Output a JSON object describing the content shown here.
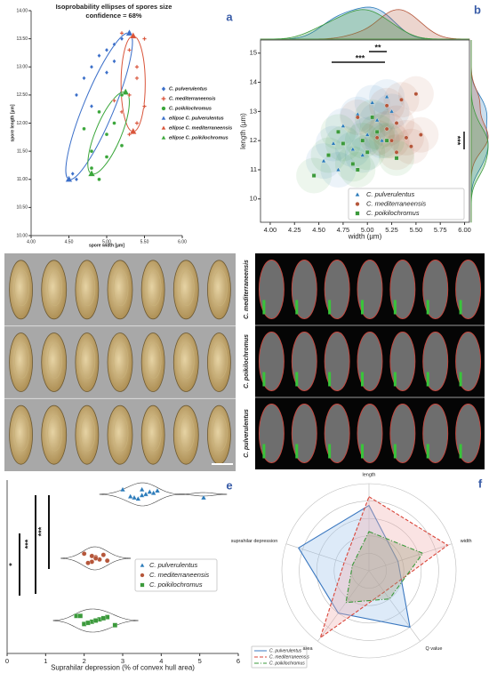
{
  "image_panels": {
    "c": {
      "label": "c"
    },
    "d": {
      "label": "d",
      "rows": [
        "C. mediterraneensis",
        "C. poikilochromus",
        "C. pulverulentus"
      ]
    }
  },
  "chart_data": [
    {
      "type": "scatter",
      "panel_label": "a",
      "title": "Isoprobability ellipses of spores size",
      "subtitle": "confidence = 68%",
      "xlabel": "spore width [µm]",
      "ylabel": "spore length [µm]",
      "xlim": [
        4,
        6
      ],
      "ylim": [
        10,
        14
      ],
      "xticks": [
        {
          "value": 4,
          "label": "4.00"
        },
        {
          "value": 4.5,
          "label": "4.50"
        },
        {
          "value": 5,
          "label": "5.00"
        },
        {
          "value": 5.5,
          "label": "5.50"
        },
        {
          "value": 6,
          "label": "6.00"
        }
      ],
      "yticks": [
        {
          "value": 10,
          "label": "10.00"
        },
        {
          "value": 10.5,
          "label": "10.50"
        },
        {
          "value": 11,
          "label": "11.00"
        },
        {
          "value": 11.5,
          "label": "11.50"
        },
        {
          "value": 12,
          "label": "12.00"
        },
        {
          "value": 12.5,
          "label": "12.50"
        },
        {
          "value": 13,
          "label": "13.00"
        },
        {
          "value": 13.5,
          "label": "13.50"
        },
        {
          "value": 14,
          "label": "14.00"
        }
      ],
      "series": [
        {
          "name": "C. pulverulentus",
          "color": "#3b6fc9",
          "marker": "diamond",
          "x": [
            4.6,
            4.7,
            4.8,
            4.9,
            5.0,
            5.1,
            5.2,
            4.8,
            5.0,
            4.6,
            4.55,
            5.1
          ],
          "y": [
            12.5,
            12.8,
            13.0,
            13.2,
            13.3,
            13.4,
            13.5,
            12.3,
            12.9,
            11.0,
            11.1,
            13.1
          ]
        },
        {
          "name": "C. mediterraneensis",
          "color": "#d9543a",
          "marker": "plus",
          "x": [
            5.2,
            5.3,
            5.4,
            5.3,
            5.2,
            5.4,
            5.5,
            5.1,
            5.3,
            5.4,
            5.5
          ],
          "y": [
            13.6,
            13.3,
            13.0,
            12.5,
            12.2,
            12.0,
            12.3,
            12.4,
            11.8,
            12.8,
            13.5
          ]
        },
        {
          "name": "C. poikilochromus",
          "color": "#3aa63a",
          "marker": "circle",
          "x": [
            4.7,
            4.8,
            4.9,
            5.0,
            5.1,
            5.0,
            5.2,
            4.8,
            5.2,
            4.9
          ],
          "y": [
            11.9,
            11.5,
            12.2,
            11.8,
            12.0,
            11.4,
            12.5,
            11.2,
            11.6,
            11.0
          ]
        }
      ],
      "ellipses": [
        {
          "name": "ellipse C. pulverulentus",
          "color": "#3b6fc9",
          "marker": "triangle",
          "x": [
            4.5,
            5.3
          ],
          "y": [
            11.0,
            13.6
          ],
          "half_width": 0.2
        },
        {
          "name": "ellipse C. mediterraneensis",
          "color": "#d9543a",
          "marker": "triangle",
          "x": [
            5.35,
            5.35
          ],
          "y": [
            11.85,
            13.55
          ],
          "half_width": 0.16
        },
        {
          "name": "ellipse C. poikilochromus",
          "color": "#3aa63a",
          "marker": "triangle",
          "x": [
            4.8,
            5.25
          ],
          "y": [
            11.1,
            12.55
          ],
          "half_width": 0.17
        }
      ]
    },
    {
      "type": "scatter",
      "panel_label": "b",
      "density": true,
      "marginals": true,
      "xlabel": "width (µm)",
      "ylabel": "length (µm)",
      "xlim": [
        3.9,
        6.05
      ],
      "ylim": [
        9.2,
        15.45
      ],
      "xticks": [
        {
          "value": 4,
          "label": "4.00"
        },
        {
          "value": 4.25,
          "label": "4.25"
        },
        {
          "value": 4.5,
          "label": "4.50"
        },
        {
          "value": 4.75,
          "label": "4.75"
        },
        {
          "value": 5,
          "label": "5.00"
        },
        {
          "value": 5.25,
          "label": "5.25"
        },
        {
          "value": 5.5,
          "label": "5.50"
        },
        {
          "value": 5.75,
          "label": "5.75"
        },
        {
          "value": 6,
          "label": "6.00"
        }
      ],
      "yticks": [
        10,
        11,
        12,
        13,
        14,
        15
      ],
      "annotations": [
        "**",
        "***",
        "***"
      ],
      "series": [
        {
          "name": "C. pulverulentus",
          "color": "#2b7bba",
          "marker": "triangle",
          "x": [
            4.55,
            4.65,
            4.75,
            4.85,
            4.9,
            5.0,
            5.05,
            5.1,
            5.2,
            5.25,
            4.95,
            4.7,
            5.15
          ],
          "y": [
            11.3,
            11.9,
            12.5,
            11.7,
            12.9,
            12.2,
            13.3,
            12.7,
            13.5,
            13.0,
            11.5,
            11.0,
            12.0
          ]
        },
        {
          "name": "C. mediterraneensis",
          "color": "#b5563a",
          "marker": "circle",
          "x": [
            4.9,
            5.1,
            5.2,
            5.25,
            5.3,
            5.35,
            5.4,
            5.45,
            5.5,
            5.55,
            5.3,
            5.2
          ],
          "y": [
            12.8,
            12.1,
            13.2,
            12.0,
            12.6,
            13.4,
            12.1,
            11.8,
            13.6,
            12.2,
            11.6,
            12.4
          ]
        },
        {
          "name": "C. poikilochromus",
          "color": "#3c9a3c",
          "marker": "square",
          "x": [
            4.45,
            4.6,
            4.75,
            4.85,
            4.95,
            5.0,
            5.1,
            5.2,
            5.3,
            4.7,
            4.9,
            5.05
          ],
          "y": [
            10.8,
            11.5,
            11.9,
            11.2,
            12.0,
            11.6,
            12.3,
            12.0,
            11.4,
            12.3,
            11.0,
            12.8
          ]
        }
      ]
    },
    {
      "type": "strip",
      "panel_label": "e",
      "xlabel": "Suprahilar depression (% of convex hull area)",
      "xlim": [
        0,
        6
      ],
      "xticks": [
        0,
        1,
        2,
        3,
        4,
        5,
        6
      ],
      "annotations": [
        "*",
        "***",
        "***"
      ],
      "series": [
        {
          "name": "C. pulverulentus",
          "color": "#2b7bba",
          "marker": "triangle",
          "values": [
            3.0,
            3.3,
            3.5,
            3.8,
            3.9,
            3.4,
            3.2,
            3.6,
            3.7,
            3.5,
            5.1
          ]
        },
        {
          "name": "C. mediterraneensis",
          "color": "#b5563a",
          "marker": "circle",
          "values": [
            2.0,
            2.2,
            2.4,
            2.3,
            2.5,
            2.1,
            2.6,
            2.3,
            2.2
          ]
        },
        {
          "name": "C. poikilochromus",
          "color": "#3c9a3c",
          "marker": "square",
          "values": [
            1.8,
            2.0,
            2.2,
            2.4,
            2.6,
            2.8,
            2.1,
            2.3,
            2.5,
            1.9
          ]
        }
      ]
    },
    {
      "type": "radar",
      "panel_label": "f",
      "axes": [
        "length",
        "width",
        "Q value",
        "area",
        "suprahilar depression"
      ],
      "rlim": [
        0,
        1
      ],
      "rticks": [
        0.2,
        0.4,
        0.6,
        0.8,
        1
      ],
      "series": [
        {
          "name": "C. pulverulentus",
          "color": "#3b78c0",
          "dash": "",
          "fill": "#9ec3ea",
          "values": [
            0.75,
            0.35,
            0.8,
            0.6,
            0.85
          ]
        },
        {
          "name": "C. mediterraneensis",
          "color": "#d9463a",
          "dash": "4 2",
          "fill": "#f2b0ae",
          "values": [
            0.85,
            0.95,
            0.3,
            0.95,
            0.3
          ]
        },
        {
          "name": "C. poikilochromus",
          "color": "#3a9a3a",
          "dash": "5 2 1 2",
          "fill": "#9c9c7a",
          "values": [
            0.45,
            0.65,
            0.4,
            0.45,
            0.2
          ]
        }
      ]
    }
  ]
}
